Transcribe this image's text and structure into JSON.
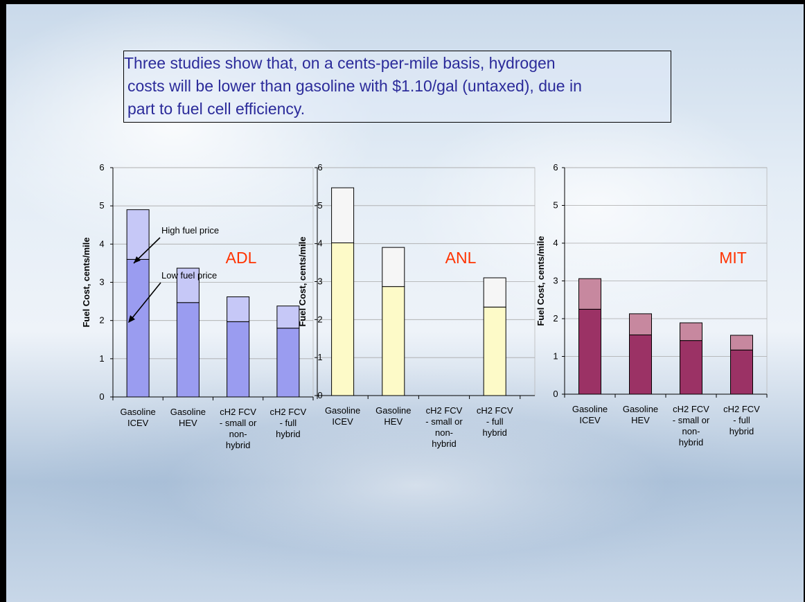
{
  "headline": {
    "lines": [
      "Three studies show that, on a cents-per-mile basis, hydrogen",
      "costs will be lower than gasoline with $1.10/gal (untaxed), due in",
      "part to fuel cell efficiency."
    ]
  },
  "colors": {
    "adl_low": "#9a9cf0",
    "adl_high": "#c6c8f7",
    "anl_low": "#fdfac8",
    "anl_high": "#f6f6f6",
    "mit_low": "#9b3265",
    "mit_high": "#c7889f",
    "study_label": "#ff3300"
  },
  "chart_data": [
    {
      "type": "bar",
      "stacked": true,
      "study_label": "ADL",
      "ylabel": "Fuel Cost, cents/mile",
      "ylim": [
        0,
        6
      ],
      "yticks": [
        "0",
        "1",
        "2",
        "3",
        "4",
        "5",
        "6"
      ],
      "categories": [
        [
          "Gasoline",
          "ICEV"
        ],
        [
          "Gasoline",
          "HEV"
        ],
        [
          "cH2 FCV",
          "- small or",
          "non-",
          "hybrid"
        ],
        [
          "cH2 FCV",
          "- full",
          "hybrid"
        ]
      ],
      "series": [
        {
          "values": [
            3.6,
            2.47,
            1.97,
            1.8
          ]
        },
        {
          "values": [
            1.3,
            0.9,
            0.65,
            0.58
          ]
        }
      ],
      "annotations": [
        "High fuel price",
        "Low fuel price"
      ],
      "grid": true
    },
    {
      "type": "bar",
      "stacked": true,
      "study_label": "ANL",
      "ylabel": "Fuel Cost, cents/mile",
      "ylim": [
        0,
        6
      ],
      "yticks": [
        "0",
        "1",
        "2",
        "3",
        "4",
        "5",
        "6"
      ],
      "categories": [
        [
          "Gasoline",
          "ICEV"
        ],
        [
          "Gasoline",
          "HEV"
        ],
        [
          "cH2 FCV",
          "- small or",
          "non-",
          "hybrid"
        ],
        [
          "cH2 FCV",
          "- full",
          "hybrid"
        ]
      ],
      "series": [
        {
          "values": [
            4.02,
            2.87,
            0,
            2.33
          ]
        },
        {
          "values": [
            1.45,
            1.03,
            0,
            0.77
          ]
        }
      ],
      "grid": true
    },
    {
      "type": "bar",
      "stacked": true,
      "study_label": "MIT",
      "ylabel": "Fuel Cost, cents/mile",
      "ylim": [
        0,
        6
      ],
      "yticks": [
        "0",
        "1",
        "2",
        "3",
        "4",
        "5",
        "6"
      ],
      "categories": [
        [
          "Gasoline",
          "ICEV"
        ],
        [
          "Gasoline",
          "HEV"
        ],
        [
          "cH2 FCV",
          "- small or",
          "non-",
          "hybrid"
        ],
        [
          "cH2 FCV",
          "- full",
          "hybrid"
        ]
      ],
      "series": [
        {
          "values": [
            2.25,
            1.57,
            1.42,
            1.17
          ]
        },
        {
          "values": [
            0.81,
            0.56,
            0.47,
            0.39
          ]
        }
      ],
      "grid": true
    }
  ]
}
